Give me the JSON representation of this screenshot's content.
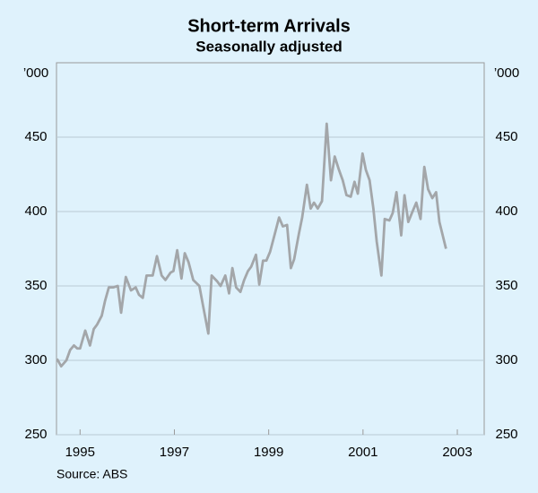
{
  "chart_data": {
    "type": "line",
    "title": "Short-term Arrivals",
    "subtitle": "Seasonally adjusted",
    "y_unit": "’000",
    "source": "Source: ABS",
    "xlim": [
      1994.5,
      2003.57
    ],
    "xticks": [
      1995,
      1997,
      1999,
      2001,
      2003
    ],
    "ylim": [
      250,
      500
    ],
    "yticks": [
      250,
      300,
      350,
      400,
      450
    ],
    "grid": true,
    "series": [
      {
        "name": "Short-term arrivals",
        "color": "#a3a6a9",
        "x": [
          1994.51,
          1994.6,
          1994.71,
          1994.79,
          1994.87,
          1994.94,
          1995.0,
          1995.11,
          1995.21,
          1995.29,
          1995.36,
          1995.46,
          1995.53,
          1995.61,
          1995.7,
          1995.8,
          1995.87,
          1995.97,
          1996.08,
          1996.18,
          1996.25,
          1996.33,
          1996.41,
          1996.54,
          1996.63,
          1996.73,
          1996.81,
          1996.92,
          1996.98,
          1997.06,
          1997.15,
          1997.22,
          1997.3,
          1997.4,
          1997.53,
          1997.6,
          1997.72,
          1997.79,
          1997.91,
          1997.98,
          1998.08,
          1998.16,
          1998.23,
          1998.31,
          1998.4,
          1998.48,
          1998.56,
          1998.63,
          1998.73,
          1998.8,
          1998.88,
          1998.95,
          1999.03,
          1999.13,
          1999.22,
          1999.3,
          1999.39,
          1999.47,
          1999.54,
          1999.64,
          1999.71,
          1999.81,
          1999.89,
          1999.96,
          2000.04,
          2000.13,
          2000.23,
          2000.32,
          2000.4,
          2000.49,
          2000.57,
          2000.65,
          2000.74,
          2000.82,
          2000.89,
          2000.99,
          2001.06,
          2001.14,
          2001.22,
          2001.29,
          2001.39,
          2001.46,
          2001.56,
          2001.63,
          2001.71,
          2001.81,
          2001.88,
          2001.96,
          2002.05,
          2002.13,
          2002.22,
          2002.3,
          2002.38,
          2002.47,
          2002.55,
          2002.62,
          2002.76
        ],
        "values": [
          301,
          296,
          300,
          307,
          310,
          308,
          308,
          320,
          310,
          321,
          324,
          330,
          340,
          349,
          349,
          350,
          332,
          356,
          347,
          349,
          344,
          342,
          357,
          357,
          370,
          357,
          354,
          359,
          360,
          374,
          355,
          372,
          366,
          354,
          350,
          338,
          318,
          357,
          353,
          350,
          357,
          345,
          362,
          349,
          346,
          354,
          360,
          363,
          371,
          351,
          367,
          367,
          373,
          385,
          396,
          390,
          391,
          362,
          368,
          385,
          396,
          418,
          402,
          406,
          402,
          407,
          459,
          421,
          437,
          428,
          421,
          411,
          410,
          420,
          412,
          439,
          428,
          421,
          402,
          380,
          357,
          395,
          394,
          399,
          413,
          384,
          411,
          393,
          400,
          406,
          395,
          430,
          415,
          409,
          413,
          393,
          375
        ]
      }
    ]
  }
}
